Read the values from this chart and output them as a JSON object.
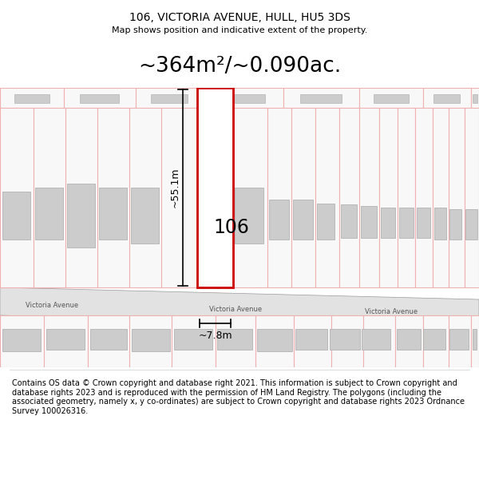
{
  "title": "106, VICTORIA AVENUE, HULL, HU5 3DS",
  "subtitle": "Map shows position and indicative extent of the property.",
  "area_text": "~364m²/~0.090ac.",
  "label_106": "106",
  "dim_height": "~55.1m",
  "dim_width": "~7.8m",
  "street_name": "Victoria Avenue",
  "footer_text": "Contains OS data © Crown copyright and database right 2021. This information is subject to Crown copyright and database rights 2023 and is reproduced with the permission of HM Land Registry. The polygons (including the associated geometry, namely x, y co-ordinates) are subject to Crown copyright and database rights 2023 Ordnance Survey 100026316.",
  "bg_color": "#ffffff",
  "faint_red": "#f0b0b0",
  "dark_red": "#cc0000",
  "building_fill": "#cccccc",
  "building_edge": "#aaaaaa",
  "road_fill": "#e2e2e2",
  "road_edge": "#999999",
  "title_fontsize": 10,
  "subtitle_fontsize": 8,
  "area_fontsize": 19,
  "label_fontsize": 17,
  "dim_fontsize": 9,
  "street_fontsize": 6,
  "footer_fontsize": 7
}
